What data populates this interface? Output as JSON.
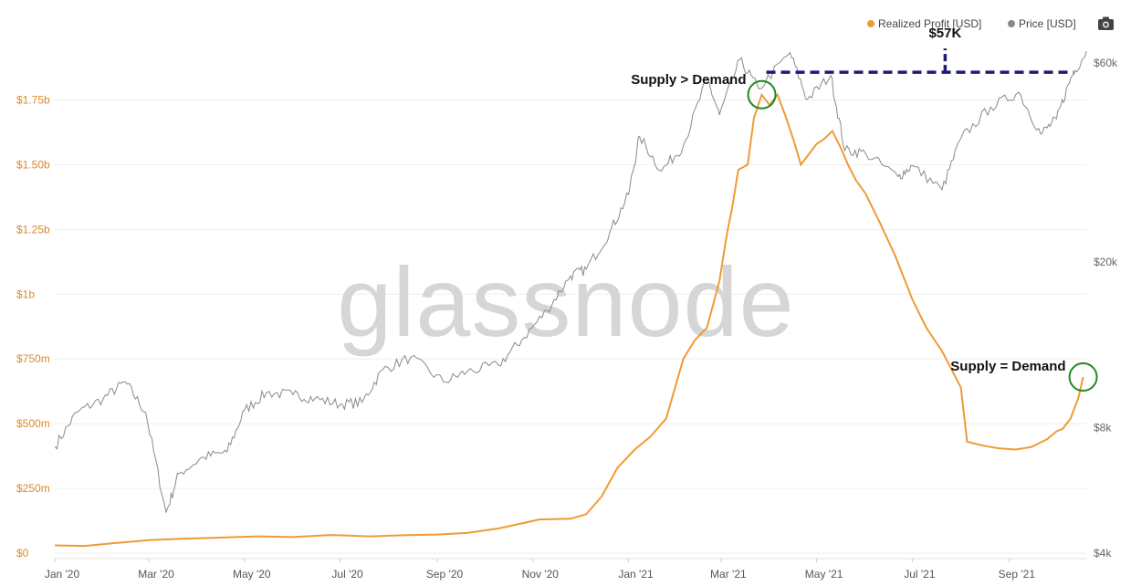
{
  "watermark": "glassnode",
  "camera_icon": "camera-icon",
  "chart_data": {
    "type": "line",
    "legend_position": "top-right",
    "grid": true,
    "x_ticks": [
      "Jan '20",
      "Mar '20",
      "May '20",
      "Jul '20",
      "Sep '20",
      "Nov '20",
      "Jan '21",
      "Mar '21",
      "May '21",
      "Jul '21",
      "Sep '21"
    ],
    "x_range": [
      "2020-01-01",
      "2021-10-20"
    ],
    "y_left": {
      "ticks": [
        "$0",
        "$250m",
        "$500m",
        "$750m",
        "$1b",
        "$1.25b",
        "$1.50b",
        "$1.75b"
      ],
      "tick_values": [
        0,
        250,
        500,
        750,
        1000,
        1250,
        1500,
        1750
      ],
      "unit": "millions USD",
      "range": [
        0,
        2030
      ]
    },
    "y_right": {
      "ticks": [
        "$4k",
        "$8k",
        "$20k",
        "$60k"
      ],
      "tick_values": [
        4000,
        8000,
        20000,
        60000
      ],
      "scale": "log",
      "range": [
        4000,
        73000
      ]
    },
    "series": [
      {
        "name": "Realized Profit [USD]",
        "axis": "left",
        "color": "#f09a36",
        "points": [
          [
            "2020-01-01",
            30
          ],
          [
            "2020-01-20",
            28
          ],
          [
            "2020-02-10",
            40
          ],
          [
            "2020-03-01",
            50
          ],
          [
            "2020-03-20",
            55
          ],
          [
            "2020-04-15",
            60
          ],
          [
            "2020-05-10",
            65
          ],
          [
            "2020-06-01",
            62
          ],
          [
            "2020-06-25",
            70
          ],
          [
            "2020-07-20",
            65
          ],
          [
            "2020-08-15",
            70
          ],
          [
            "2020-09-01",
            72
          ],
          [
            "2020-09-20",
            78
          ],
          [
            "2020-10-10",
            95
          ],
          [
            "2020-10-25",
            115
          ],
          [
            "2020-11-05",
            130
          ],
          [
            "2020-11-25",
            133
          ],
          [
            "2020-12-05",
            150
          ],
          [
            "2020-12-15",
            220
          ],
          [
            "2020-12-25",
            330
          ],
          [
            "2021-01-05",
            400
          ],
          [
            "2021-01-15",
            450
          ],
          [
            "2021-01-25",
            520
          ],
          [
            "2021-02-05",
            750
          ],
          [
            "2021-02-12",
            820
          ],
          [
            "2021-02-20",
            870
          ],
          [
            "2021-02-28",
            1050
          ],
          [
            "2021-03-05",
            1240
          ],
          [
            "2021-03-08",
            1330
          ],
          [
            "2021-03-12",
            1480
          ],
          [
            "2021-03-18",
            1500
          ],
          [
            "2021-03-22",
            1680
          ],
          [
            "2021-03-27",
            1770
          ],
          [
            "2021-04-01",
            1730
          ],
          [
            "2021-04-06",
            1770
          ],
          [
            "2021-04-11",
            1690
          ],
          [
            "2021-04-16",
            1600
          ],
          [
            "2021-04-21",
            1500
          ],
          [
            "2021-04-26",
            1540
          ],
          [
            "2021-05-01",
            1580
          ],
          [
            "2021-05-06",
            1600
          ],
          [
            "2021-05-11",
            1630
          ],
          [
            "2021-05-16",
            1570
          ],
          [
            "2021-05-21",
            1500
          ],
          [
            "2021-05-26",
            1440
          ],
          [
            "2021-06-01",
            1390
          ],
          [
            "2021-06-10",
            1280
          ],
          [
            "2021-06-20",
            1150
          ],
          [
            "2021-07-01",
            980
          ],
          [
            "2021-07-10",
            870
          ],
          [
            "2021-07-20",
            780
          ],
          [
            "2021-08-01",
            640
          ],
          [
            "2021-08-05",
            430
          ],
          [
            "2021-08-15",
            415
          ],
          [
            "2021-08-25",
            405
          ],
          [
            "2021-09-05",
            400
          ],
          [
            "2021-09-15",
            410
          ],
          [
            "2021-09-25",
            440
          ],
          [
            "2021-10-01",
            470
          ],
          [
            "2021-10-05",
            480
          ],
          [
            "2021-10-10",
            520
          ],
          [
            "2021-10-15",
            600
          ],
          [
            "2021-10-18",
            680
          ]
        ]
      },
      {
        "name": "Price [USD]",
        "axis": "right",
        "color": "#8a8a8a",
        "points": [
          [
            "2020-01-01",
            7200
          ],
          [
            "2020-01-15",
            8700
          ],
          [
            "2020-02-01",
            9400
          ],
          [
            "2020-02-15",
            10300
          ],
          [
            "2020-02-28",
            8700
          ],
          [
            "2020-03-12",
            5000
          ],
          [
            "2020-03-20",
            6200
          ],
          [
            "2020-04-05",
            6800
          ],
          [
            "2020-04-20",
            7000
          ],
          [
            "2020-05-01",
            8800
          ],
          [
            "2020-05-15",
            9700
          ],
          [
            "2020-06-01",
            9600
          ],
          [
            "2020-06-15",
            9400
          ],
          [
            "2020-07-01",
            9100
          ],
          [
            "2020-07-15",
            9200
          ],
          [
            "2020-07-28",
            11000
          ],
          [
            "2020-08-15",
            11800
          ],
          [
            "2020-09-05",
            10300
          ],
          [
            "2020-09-20",
            10900
          ],
          [
            "2020-10-10",
            11300
          ],
          [
            "2020-10-25",
            13000
          ],
          [
            "2020-11-10",
            15300
          ],
          [
            "2020-11-25",
            18500
          ],
          [
            "2020-12-05",
            19200
          ],
          [
            "2020-12-20",
            23500
          ],
          [
            "2021-01-01",
            29000
          ],
          [
            "2021-01-08",
            40000
          ],
          [
            "2021-01-22",
            33000
          ],
          [
            "2021-02-05",
            38000
          ],
          [
            "2021-02-20",
            55000
          ],
          [
            "2021-02-28",
            45000
          ],
          [
            "2021-03-13",
            61000
          ],
          [
            "2021-03-25",
            52000
          ],
          [
            "2021-04-14",
            63500
          ],
          [
            "2021-04-25",
            49000
          ],
          [
            "2021-05-10",
            56000
          ],
          [
            "2021-05-19",
            37000
          ],
          [
            "2021-06-01",
            36500
          ],
          [
            "2021-06-22",
            32000
          ],
          [
            "2021-07-01",
            34000
          ],
          [
            "2021-07-20",
            29800
          ],
          [
            "2021-08-01",
            39500
          ],
          [
            "2021-08-20",
            47000
          ],
          [
            "2021-09-07",
            51000
          ],
          [
            "2021-09-21",
            40500
          ],
          [
            "2021-10-01",
            44000
          ],
          [
            "2021-10-10",
            55000
          ],
          [
            "2021-10-20",
            64000
          ]
        ]
      }
    ],
    "annotations": [
      {
        "text": "Supply > Demand",
        "x": "2021-03-27",
        "y": 1770,
        "axis": "left"
      },
      {
        "text": "Supply = Demand",
        "x": "2021-10-18",
        "y": 680,
        "axis": "left"
      },
      {
        "text": "$57K",
        "price": 57000
      }
    ]
  }
}
